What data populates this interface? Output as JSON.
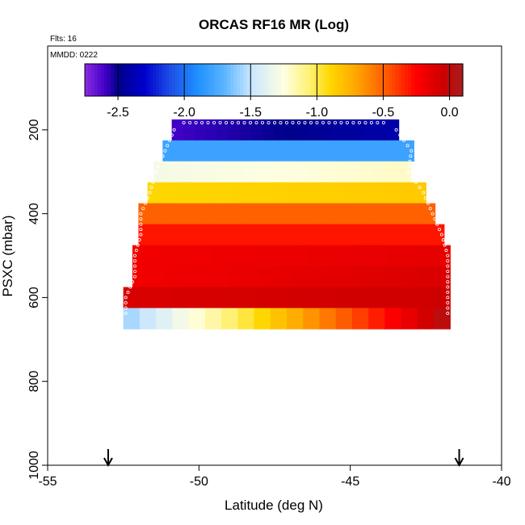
{
  "chart_data": {
    "type": "heatmap",
    "title": "ORCAS RF16 MR (Log)",
    "flights_label": "Flts: 16",
    "date_label": "MMDD: 0222",
    "xlabel": "Latitude (deg N)",
    "ylabel": "PSXC (mbar)",
    "xlim": [
      -55,
      -40
    ],
    "ylim": [
      1000,
      0
    ],
    "x_ticks": [
      -55,
      -50,
      -45,
      -40
    ],
    "y_ticks": [
      200,
      400,
      600,
      800,
      1000
    ],
    "colorbar": {
      "range": [
        -2.75,
        0.1
      ],
      "ticks": [
        -2.5,
        -2.0,
        -1.5,
        -1.0,
        -0.5,
        0.0
      ],
      "tick_labels": [
        "-2.5",
        "-2.0",
        "-1.5",
        "-1.0",
        "-0.5",
        "0.0"
      ]
    },
    "arrows_at_lat": [
      -53.0,
      -41.4
    ],
    "layers": [
      {
        "p_top": 175,
        "p_bot": 225,
        "lat_left": -50.9,
        "lat_right": -43.4,
        "value_left": -2.6,
        "value_right": -2.4
      },
      {
        "p_top": 225,
        "p_bot": 275,
        "lat_left": -51.2,
        "lat_right": -42.9,
        "value_left": -1.8,
        "value_right": -1.8
      },
      {
        "p_top": 275,
        "p_bot": 325,
        "lat_left": -51.5,
        "lat_right": -43.0,
        "value_left": -1.3,
        "value_right": -1.2
      },
      {
        "p_top": 325,
        "p_bot": 375,
        "lat_left": -51.7,
        "lat_right": -42.5,
        "value_left": -0.9,
        "value_right": -0.85
      },
      {
        "p_top": 375,
        "p_bot": 425,
        "lat_left": -52.0,
        "lat_right": -42.2,
        "value_left": -0.5,
        "value_right": -0.5
      },
      {
        "p_top": 425,
        "p_bot": 475,
        "lat_left": -52.0,
        "lat_right": -41.9,
        "value_left": -0.3,
        "value_right": -0.3
      },
      {
        "p_top": 475,
        "p_bot": 525,
        "lat_left": -52.2,
        "lat_right": -41.7,
        "value_left": -0.2,
        "value_right": -0.15
      },
      {
        "p_top": 525,
        "p_bot": 575,
        "lat_left": -52.2,
        "lat_right": -41.7,
        "value_left": -0.2,
        "value_right": -0.1
      },
      {
        "p_top": 575,
        "p_bot": 625,
        "lat_left": -52.5,
        "lat_right": -41.7,
        "value_left": -0.1,
        "value_right": -0.05
      },
      {
        "p_top": 625,
        "p_bot": 675,
        "lat_left": -52.5,
        "lat_right": -41.7,
        "value_left": -1.6,
        "value_right": 0.05
      }
    ]
  }
}
